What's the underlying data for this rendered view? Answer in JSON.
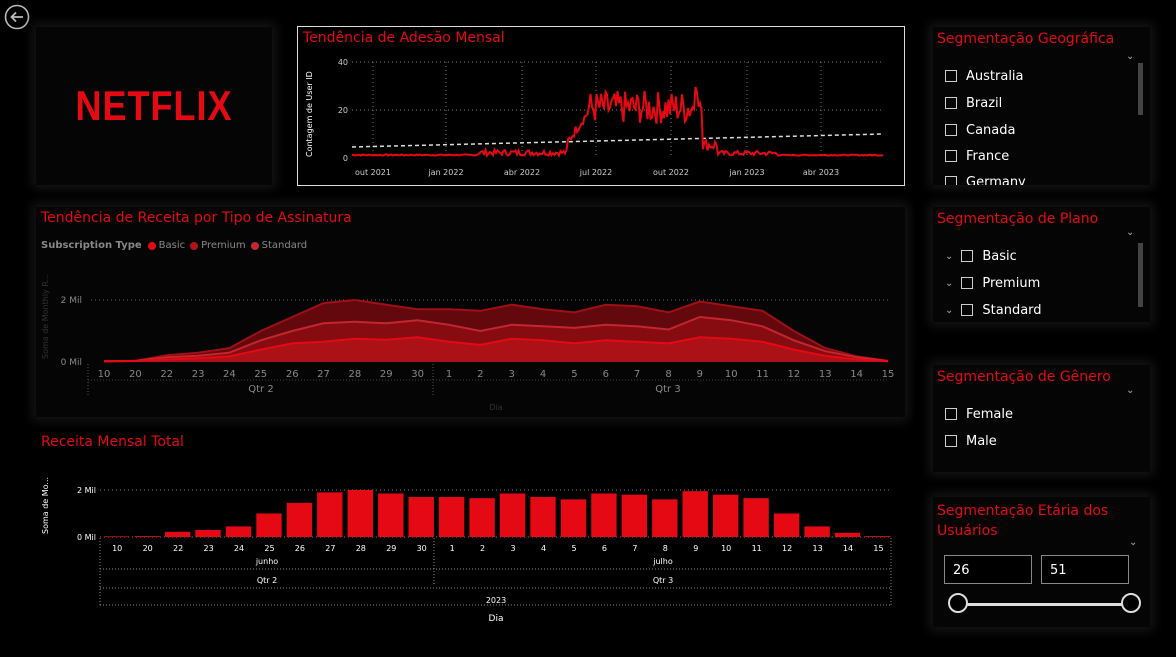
{
  "logo": "NETFLIX",
  "adesao": {
    "title": "Tendência de Adesão Mensal",
    "ylabel": "Contagem de User ID",
    "yticks": [
      "40",
      "20",
      "0"
    ],
    "xticks": [
      "out 2021",
      "jan 2022",
      "abr 2022",
      "jul 2022",
      "out 2022",
      "jan 2023",
      "abr 2023"
    ]
  },
  "receita_tipo": {
    "title": "Tendência de Receita por Tipo de Assinatura",
    "legend_label": "Subscription Type",
    "legend": [
      {
        "name": "Basic",
        "color": "#e50914"
      },
      {
        "name": "Premium",
        "color": "#b1121a"
      },
      {
        "name": "Standard",
        "color": "#c4262e"
      }
    ],
    "ylabel": "Soma de Monthly R...",
    "yticks": [
      "2 Mil",
      "0 Mil"
    ],
    "days": [
      "10",
      "20",
      "22",
      "23",
      "24",
      "25",
      "26",
      "27",
      "28",
      "29",
      "30",
      "1",
      "2",
      "3",
      "4",
      "5",
      "6",
      "7",
      "8",
      "9",
      "10",
      "11",
      "12",
      "13",
      "14",
      "15"
    ],
    "quarters": [
      "Qtr 2",
      "Qtr 3"
    ],
    "xlabel": "Dia"
  },
  "receita_mensal": {
    "title": "Receita Mensal Total",
    "ylabel": "Soma de Mo...",
    "yticks": [
      "2 Mil",
      "0 Mil"
    ],
    "days": [
      "10",
      "20",
      "22",
      "23",
      "24",
      "25",
      "26",
      "27",
      "28",
      "29",
      "30",
      "1",
      "2",
      "3",
      "4",
      "5",
      "6",
      "7",
      "8",
      "9",
      "10",
      "11",
      "12",
      "13",
      "14",
      "15"
    ],
    "months": [
      "junho",
      "julho"
    ],
    "quarters": [
      "Qtr 2",
      "Qtr 3"
    ],
    "year": "2023",
    "xlabel": "Dia"
  },
  "chart_data": [
    {
      "type": "bar",
      "title": "Receita Mensal Total",
      "ylabel": "Soma de Mo...",
      "xlabel": "Dia",
      "categories": [
        "10",
        "20",
        "22",
        "23",
        "24",
        "25",
        "26",
        "27",
        "28",
        "29",
        "30",
        "1",
        "2",
        "3",
        "4",
        "5",
        "6",
        "7",
        "8",
        "9",
        "10",
        "11",
        "12",
        "13",
        "14",
        "15"
      ],
      "values": [
        30,
        40,
        220,
        300,
        450,
        1000,
        1450,
        1900,
        2000,
        1850,
        1700,
        1700,
        1650,
        1850,
        1700,
        1600,
        1850,
        1800,
        1600,
        1950,
        1800,
        1650,
        1000,
        450,
        180,
        40
      ],
      "ylim": [
        0,
        2200
      ]
    },
    {
      "type": "area",
      "title": "Tendência de Receita por Tipo de Assinatura",
      "ylabel": "Soma de Monthly R...",
      "xlabel": "Dia",
      "categories": [
        "10",
        "20",
        "22",
        "23",
        "24",
        "25",
        "26",
        "27",
        "28",
        "29",
        "30",
        "1",
        "2",
        "3",
        "4",
        "5",
        "6",
        "7",
        "8",
        "9",
        "10",
        "11",
        "12",
        "13",
        "14",
        "15"
      ],
      "series": [
        {
          "name": "Basic",
          "values": [
            20,
            30,
            80,
            120,
            180,
            400,
            600,
            650,
            750,
            720,
            800,
            650,
            550,
            750,
            700,
            600,
            700,
            650,
            600,
            800,
            750,
            650,
            400,
            200,
            80,
            20
          ]
        },
        {
          "name": "Premium",
          "values": [
            25,
            35,
            150,
            200,
            300,
            700,
            1000,
            1250,
            1300,
            1250,
            1350,
            1200,
            1000,
            1200,
            1150,
            1100,
            1200,
            1150,
            1050,
            1450,
            1350,
            1150,
            700,
            350,
            150,
            30
          ]
        },
        {
          "name": "Standard",
          "values": [
            30,
            40,
            220,
            300,
            450,
            1000,
            1450,
            1900,
            2000,
            1850,
            1700,
            1700,
            1650,
            1850,
            1700,
            1600,
            1850,
            1800,
            1600,
            1950,
            1800,
            1650,
            1000,
            450,
            180,
            40
          ]
        }
      ],
      "ylim": [
        0,
        2200
      ]
    },
    {
      "type": "line",
      "title": "Tendência de Adesão Mensal",
      "ylabel": "Contagem de User ID",
      "x": [
        "out 2021",
        "jan 2022",
        "abr 2022",
        "jul 2022",
        "out 2022",
        "jan 2023",
        "abr 2023"
      ],
      "series": [
        {
          "values": [
            1,
            1,
            2,
            25,
            20,
            2,
            1
          ]
        }
      ],
      "ylim": [
        0,
        40
      ]
    }
  ],
  "geo": {
    "title": "Segmentação Geográfica",
    "items": [
      "Australia",
      "Brazil",
      "Canada",
      "France",
      "Germany"
    ]
  },
  "plano": {
    "title": "Segmentação de Plano",
    "items": [
      "Basic",
      "Premium",
      "Standard"
    ]
  },
  "genero": {
    "title": "Segmentação de Gênero",
    "items": [
      "Female",
      "Male"
    ]
  },
  "etaria": {
    "title": "Segmentação Etária dos Usuários",
    "min": "26",
    "max": "51"
  },
  "icons": {
    "back": "back-arrow-icon",
    "chevron": "chevron-down-icon"
  },
  "colors": {
    "accent": "#e50914",
    "dark_red": "#8b0d12",
    "mid_red": "#b1121a"
  }
}
